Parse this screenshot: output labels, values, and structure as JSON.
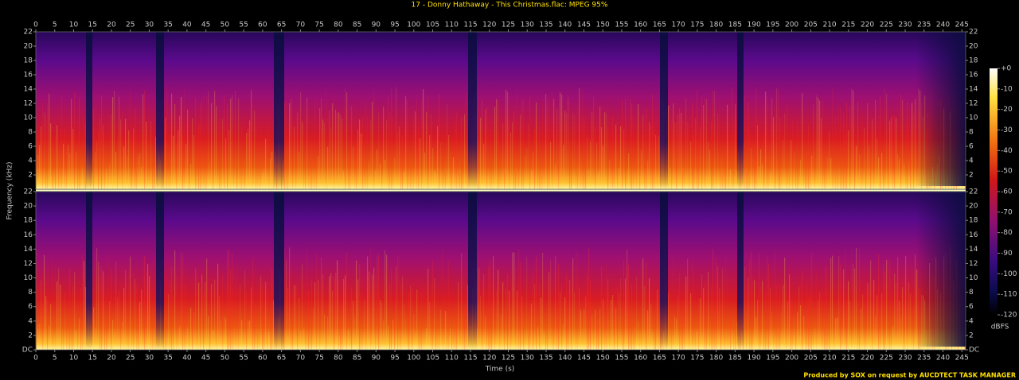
{
  "chart_data": {
    "type": "spectrogram",
    "title": "17 - Donny Hathaway - This Christmas.flac: MPEG 95%",
    "x_label": "Time (s)",
    "y_label": "Frequency (kHz)",
    "footer": "Produced by SOX on request by AUCDTECT TASK MANAGER",
    "xlim": [
      0,
      246
    ],
    "xticks": [
      0,
      5,
      10,
      15,
      20,
      25,
      30,
      35,
      40,
      45,
      50,
      55,
      60,
      65,
      70,
      75,
      80,
      85,
      90,
      95,
      100,
      105,
      110,
      115,
      120,
      125,
      130,
      135,
      140,
      145,
      150,
      155,
      160,
      165,
      170,
      175,
      180,
      185,
      190,
      195,
      200,
      205,
      210,
      215,
      220,
      225,
      230,
      235,
      240,
      245
    ],
    "ylim": [
      0,
      22
    ],
    "yticks": [
      {
        "value": 0,
        "label": "DC"
      },
      2,
      4,
      6,
      8,
      10,
      12,
      14,
      16,
      18,
      20,
      22
    ],
    "colorbar": {
      "label": "dBFS",
      "lim": [
        -120,
        0
      ],
      "ticks": [
        {
          "value": 0,
          "label": "+0"
        },
        -10,
        -20,
        -30,
        -40,
        -50,
        -60,
        -70,
        -80,
        -90,
        -100,
        -110,
        -120
      ]
    }
  }
}
